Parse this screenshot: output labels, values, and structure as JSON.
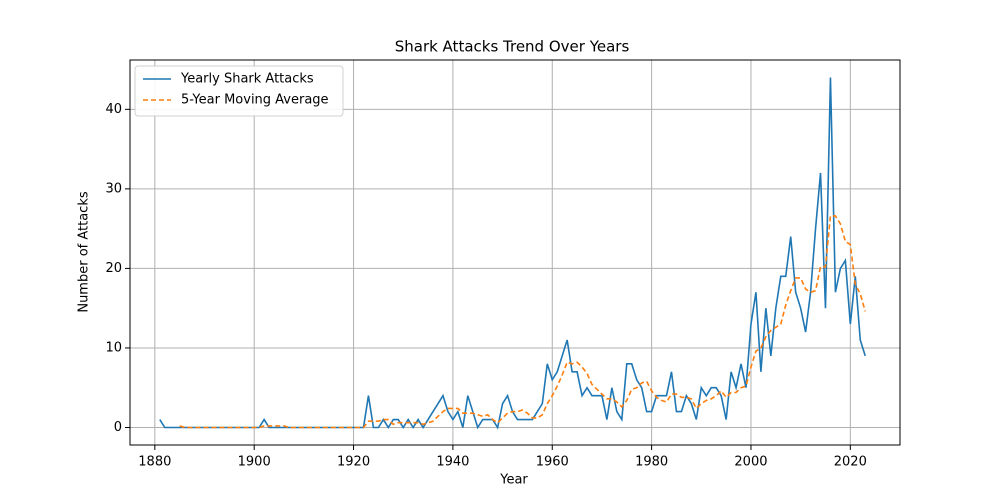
{
  "chart_data": {
    "type": "line",
    "title": "Shark Attacks Trend Over Years",
    "x_label": "Year",
    "y_label": "Number of Attacks",
    "x": [
      1881,
      1882,
      1883,
      1884,
      1885,
      1886,
      1887,
      1888,
      1889,
      1890,
      1891,
      1892,
      1893,
      1894,
      1895,
      1896,
      1897,
      1898,
      1899,
      1900,
      1901,
      1902,
      1903,
      1904,
      1905,
      1906,
      1907,
      1908,
      1909,
      1910,
      1911,
      1912,
      1913,
      1914,
      1915,
      1916,
      1917,
      1918,
      1919,
      1920,
      1921,
      1922,
      1923,
      1924,
      1925,
      1926,
      1927,
      1928,
      1929,
      1930,
      1931,
      1932,
      1933,
      1934,
      1935,
      1936,
      1937,
      1938,
      1939,
      1940,
      1941,
      1942,
      1943,
      1944,
      1945,
      1946,
      1947,
      1948,
      1949,
      1950,
      1951,
      1952,
      1953,
      1954,
      1955,
      1956,
      1957,
      1958,
      1959,
      1960,
      1961,
      1962,
      1963,
      1964,
      1965,
      1966,
      1967,
      1968,
      1969,
      1970,
      1971,
      1972,
      1973,
      1974,
      1975,
      1976,
      1977,
      1978,
      1979,
      1980,
      1981,
      1982,
      1983,
      1984,
      1985,
      1986,
      1987,
      1988,
      1989,
      1990,
      1991,
      1992,
      1993,
      1994,
      1995,
      1996,
      1997,
      1998,
      1999,
      2000,
      2001,
      2002,
      2003,
      2004,
      2005,
      2006,
      2007,
      2008,
      2009,
      2010,
      2011,
      2012,
      2013,
      2014,
      2015,
      2016,
      2017,
      2018,
      2019,
      2020,
      2021,
      2022,
      2023
    ],
    "series": [
      {
        "name": "Yearly Shark Attacks",
        "color": "#1f77b4",
        "dash": false,
        "values": [
          1,
          0,
          0,
          0,
          0,
          0,
          0,
          0,
          0,
          0,
          0,
          0,
          0,
          0,
          0,
          0,
          0,
          0,
          0,
          0,
          0,
          1,
          0,
          0,
          0,
          0,
          0,
          0,
          0,
          0,
          0,
          0,
          0,
          0,
          0,
          0,
          0,
          0,
          0,
          0,
          0,
          0,
          4,
          0,
          0,
          1,
          0,
          1,
          1,
          0,
          1,
          0,
          1,
          0,
          1,
          2,
          3,
          4,
          2,
          1,
          2,
          0,
          4,
          2,
          0,
          1,
          1,
          1,
          0,
          3,
          4,
          2,
          1,
          1,
          1,
          1,
          2,
          3,
          8,
          6,
          7,
          9,
          11,
          7,
          7,
          4,
          5,
          4,
          4,
          4,
          1,
          5,
          2,
          1,
          8,
          8,
          6,
          5,
          2,
          2,
          4,
          4,
          4,
          7,
          2,
          2,
          4,
          3,
          1,
          5,
          4,
          5,
          5,
          4,
          1,
          7,
          5,
          8,
          5,
          13,
          17,
          7,
          15,
          9,
          15,
          19,
          19,
          24,
          17,
          15,
          12,
          17,
          25,
          32,
          15,
          44,
          17,
          20,
          21,
          13,
          19,
          11,
          9
        ]
      },
      {
        "name": "5-Year Moving Average",
        "color": "#ff7f0e",
        "dash": true,
        "values": [
          null,
          null,
          null,
          null,
          0.2,
          0,
          0,
          0,
          0,
          0,
          0,
          0,
          0,
          0,
          0,
          0,
          0,
          0,
          0,
          0,
          0,
          0.2,
          0.2,
          0.2,
          0.2,
          0.2,
          0,
          0,
          0,
          0,
          0,
          0,
          0,
          0,
          0,
          0,
          0,
          0,
          0,
          0,
          0,
          0,
          0.8,
          0.8,
          0.8,
          1.0,
          1.0,
          0.4,
          0.6,
          0.6,
          0.6,
          0.6,
          0.6,
          0.4,
          0.6,
          0.8,
          1.4,
          2.0,
          2.4,
          2.4,
          2.4,
          1.8,
          1.8,
          1.8,
          1.6,
          1.4,
          1.6,
          1.0,
          0.6,
          1.2,
          1.8,
          2.0,
          2.0,
          2.2,
          1.8,
          1.2,
          1.2,
          1.6,
          3.0,
          4.0,
          5.2,
          6.6,
          8.2,
          8.0,
          8.2,
          7.6,
          6.8,
          5.4,
          4.8,
          4.2,
          3.6,
          3.6,
          3.2,
          2.6,
          3.4,
          4.8,
          5.0,
          5.6,
          5.8,
          4.6,
          3.8,
          3.4,
          3.2,
          4.2,
          4.2,
          3.8,
          3.8,
          3.6,
          2.4,
          3.0,
          3.4,
          3.6,
          4.0,
          4.6,
          3.8,
          4.4,
          4.4,
          5.0,
          5.2,
          7.6,
          9.6,
          10.0,
          11.4,
          12.2,
          12.6,
          13.0,
          15.4,
          17.2,
          18.8,
          18.8,
          17.4,
          17.0,
          17.2,
          20.2,
          20.2,
          26.6,
          26.6,
          25.6,
          23.4,
          23.0,
          18.0,
          16.8,
          14.6
        ]
      }
    ],
    "xlim": [
      1875,
      2030
    ],
    "ylim": [
      -2.2,
      46.2
    ],
    "xticks": [
      1880,
      1900,
      1920,
      1940,
      1960,
      1980,
      2000,
      2020
    ],
    "yticks": [
      0,
      10,
      20,
      30,
      40
    ],
    "grid": true,
    "legend": "upper left"
  }
}
